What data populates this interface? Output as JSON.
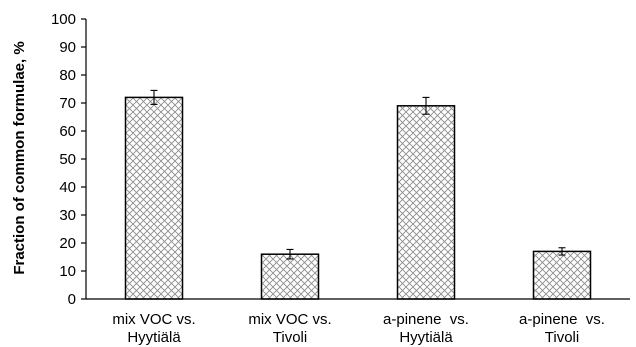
{
  "chart_data": {
    "type": "bar",
    "title": "",
    "xlabel": "",
    "ylabel": "Fraction of common formulae, %",
    "ylim": [
      0,
      100
    ],
    "yticks": [
      0,
      10,
      20,
      30,
      40,
      50,
      60,
      70,
      80,
      90,
      100
    ],
    "grid": false,
    "legend": "none",
    "categories": [
      [
        "mix VOC vs.",
        "Hyytiälä"
      ],
      [
        "mix VOC vs.",
        "Tivoli"
      ],
      [
        "a-pinene  vs.",
        "Hyytiälä"
      ],
      [
        "a-pinene  vs.",
        "Tivoli"
      ]
    ],
    "values": [
      72,
      16,
      69,
      17
    ],
    "errors": [
      2.5,
      1.7,
      3,
      1.3
    ],
    "bar_fill": "crosshatch",
    "colors": {
      "bar_stroke": "#000000",
      "hatch": "#8c8c8c",
      "axis": "#000000"
    }
  }
}
